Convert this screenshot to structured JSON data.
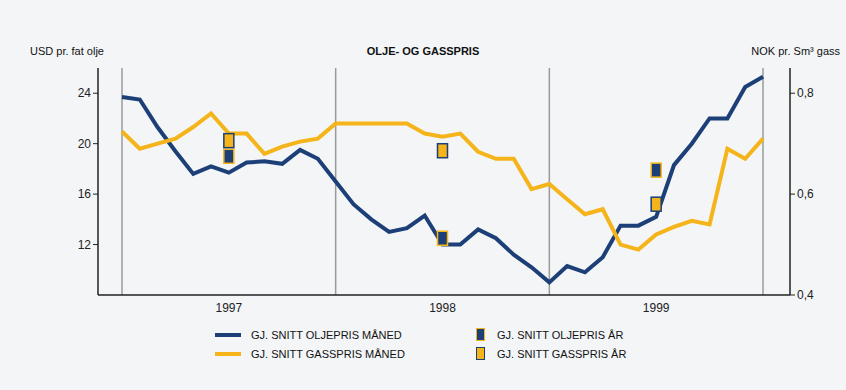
{
  "chart_data": {
    "type": "line",
    "title": "OLJE- OG GASSPRIS",
    "y_label": "USD pr. fat olje",
    "y2_label": "NOK pr. Sm³ gass",
    "categories": [
      null,
      null,
      null,
      null,
      null,
      null,
      "1997",
      null,
      null,
      null,
      null,
      null,
      null,
      null,
      null,
      null,
      null,
      null,
      "1998",
      null,
      null,
      null,
      null,
      null,
      null,
      null,
      null,
      null,
      null,
      null,
      "1999",
      null,
      null,
      null,
      null,
      null,
      null
    ],
    "series": [
      {
        "name": "GJ. SNITT OLJEPRIS MÅNED",
        "type": "line",
        "color": "#1c3f78",
        "values": [
          23.7,
          23.5,
          21.3,
          19.4,
          17.6,
          18.2,
          17.7,
          18.5,
          18.6,
          18.4,
          19.5,
          18.8,
          17.0,
          15.2,
          14.0,
          13.0,
          13.3,
          14.3,
          12.0,
          12.0,
          13.2,
          12.5,
          11.2,
          10.2,
          9.0,
          10.3,
          9.8,
          11.0,
          13.5,
          13.5,
          14.2,
          18.3,
          20.0,
          22.0,
          22.0,
          24.5,
          25.3
        ]
      },
      {
        "name": "GJ. SNITT GASSPRIS MÅNED",
        "type": "line",
        "axis": "y2",
        "color": "#f4b41a",
        "values": [
          0.724,
          0.69,
          0.7,
          0.71,
          0.733,
          0.76,
          0.72,
          0.72,
          0.68,
          0.694,
          0.704,
          0.71,
          0.74,
          0.74,
          0.74,
          0.74,
          0.74,
          0.72,
          0.714,
          0.72,
          0.684,
          0.67,
          0.67,
          0.61,
          0.62,
          0.59,
          0.56,
          0.57,
          0.5,
          0.49,
          0.52,
          0.535,
          0.547,
          0.54,
          0.69,
          0.67,
          0.71
        ]
      },
      {
        "name": "GJ. SNITT OLJEPRIS ÅR",
        "type": "scatter",
        "marker": "square",
        "color": "#1c3f78",
        "values": [
          null,
          null,
          null,
          null,
          null,
          null,
          19.0,
          null,
          null,
          null,
          null,
          null,
          null,
          null,
          null,
          null,
          null,
          null,
          12.5,
          null,
          null,
          null,
          null,
          null,
          null,
          null,
          null,
          null,
          null,
          null,
          17.9,
          null,
          null,
          null,
          null,
          null,
          null
        ]
      },
      {
        "name": "GJ. SNITT GASSPRIS ÅR",
        "type": "scatter",
        "marker": "square",
        "axis": "y2",
        "color": "#f4b41a",
        "values": [
          null,
          null,
          null,
          null,
          null,
          null,
          0.706,
          null,
          null,
          null,
          null,
          null,
          null,
          null,
          null,
          null,
          null,
          null,
          0.686,
          null,
          null,
          null,
          null,
          null,
          null,
          null,
          null,
          null,
          null,
          null,
          0.58,
          null,
          null,
          null,
          null,
          null,
          null
        ]
      }
    ],
    "ylim": [
      8,
      26
    ],
    "yticks": [
      12,
      16,
      20,
      24
    ],
    "y2lim": [
      0.4,
      0.85
    ],
    "y2ticks": [
      {
        "value": 0.4,
        "label": "0,4"
      },
      {
        "value": 0.6,
        "label": "0,6"
      },
      {
        "value": 0.8,
        "label": "0,8"
      }
    ],
    "grid": true,
    "legend": "bottom"
  }
}
